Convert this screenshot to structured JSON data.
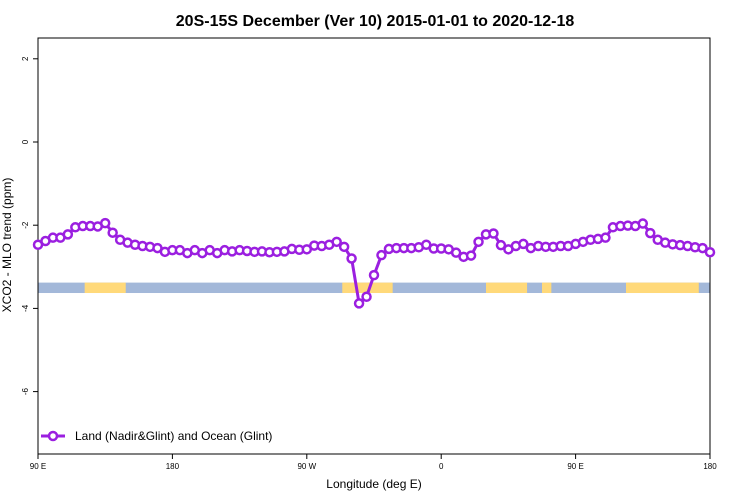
{
  "chart_data": {
    "type": "line",
    "title": "20S-15S December (Ver 10)   2015-01-01 to 2020-12-18",
    "xlabel": "Longitude (deg E)",
    "ylabel": "XCO2 - MLO trend (ppm)",
    "xlim": [
      90,
      450
    ],
    "ylim": [
      -7.5,
      2.5
    ],
    "x_ticks": [
      90,
      162,
      234,
      306,
      378,
      450
    ],
    "x_tick_labels": [
      "90 E",
      "180",
      "90 W",
      "0",
      "90 E",
      "180"
    ],
    "y_ticks": [
      2,
      0,
      -2,
      -4,
      -6
    ],
    "y_tick_labels": [
      "2",
      "0",
      "-2",
      "-4",
      "-6"
    ],
    "grid": false,
    "legend_position": "bottom-left",
    "series": [
      {
        "name": "Land (Nadir&Glint) and Ocean (Glint)",
        "color": "#9b1fe0",
        "x": [
          90,
          94,
          98,
          102,
          106,
          110,
          114,
          118,
          122,
          126,
          130,
          134,
          138,
          142,
          146,
          150,
          154,
          158,
          162,
          166,
          170,
          174,
          178,
          182,
          186,
          190,
          194,
          198,
          202,
          206,
          210,
          214,
          218,
          222,
          226,
          230,
          234,
          238,
          242,
          246,
          250,
          254,
          258,
          262,
          266,
          270,
          274,
          278,
          282,
          286,
          290,
          294,
          298,
          302,
          306,
          310,
          314,
          318,
          322,
          326,
          330,
          334,
          338,
          342,
          346,
          350,
          354,
          358,
          362,
          366,
          370,
          374,
          378,
          382,
          386,
          390,
          394,
          398,
          402,
          406,
          410,
          414,
          418,
          422,
          426,
          430,
          434,
          438,
          442,
          446,
          450
        ],
        "y": [
          -2.47,
          -2.38,
          -2.3,
          -2.3,
          -2.22,
          -2.05,
          -2.02,
          -2.02,
          -2.03,
          -1.95,
          -2.18,
          -2.35,
          -2.42,
          -2.47,
          -2.5,
          -2.52,
          -2.55,
          -2.64,
          -2.6,
          -2.6,
          -2.67,
          -2.6,
          -2.67,
          -2.6,
          -2.67,
          -2.6,
          -2.63,
          -2.6,
          -2.62,
          -2.64,
          -2.63,
          -2.65,
          -2.64,
          -2.63,
          -2.57,
          -2.59,
          -2.58,
          -2.49,
          -2.5,
          -2.47,
          -2.4,
          -2.52,
          -2.8,
          -3.88,
          -3.72,
          -3.2,
          -2.72,
          -2.57,
          -2.55,
          -2.55,
          -2.55,
          -2.53,
          -2.47,
          -2.56,
          -2.56,
          -2.58,
          -2.66,
          -2.76,
          -2.73,
          -2.4,
          -2.22,
          -2.2,
          -2.48,
          -2.58,
          -2.5,
          -2.45,
          -2.55,
          -2.5,
          -2.52,
          -2.52,
          -2.5,
          -2.5,
          -2.45,
          -2.4,
          -2.35,
          -2.33,
          -2.3,
          -2.05,
          -2.02,
          -2.01,
          -2.02,
          -1.96,
          -2.19,
          -2.35,
          -2.42,
          -2.46,
          -2.48,
          -2.5,
          -2.53,
          -2.55,
          -2.65
        ]
      }
    ],
    "coverage_band": {
      "y_range": [
        -3.63,
        -3.38
      ],
      "ocean_color": "#a3b8d9",
      "land_color": "#ffd97a",
      "land_segments": [
        [
          115,
          137
        ],
        [
          253,
          280
        ],
        [
          330,
          352
        ],
        [
          360,
          365
        ],
        [
          405,
          444
        ]
      ]
    }
  }
}
